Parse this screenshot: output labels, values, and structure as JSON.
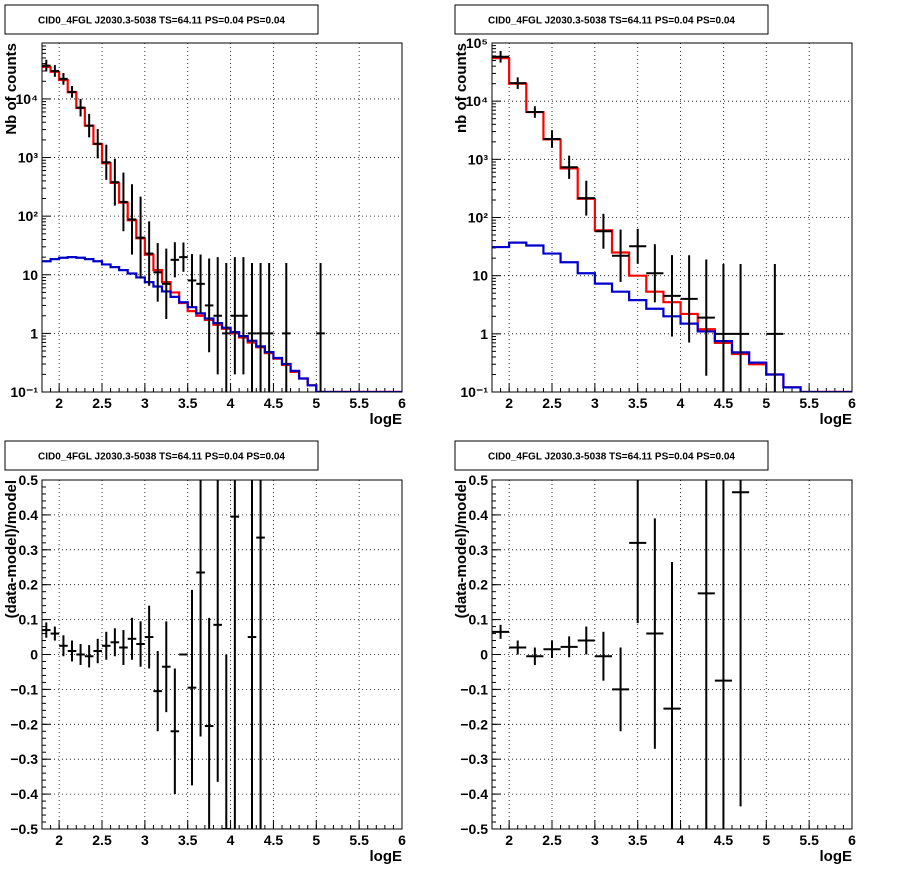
{
  "colors": {
    "data": "#000000",
    "total_model": "#ff0000",
    "source_model": "#0000cc",
    "grid": "#000000",
    "background": "#ffffff"
  },
  "chart_data": [
    {
      "type": "step_histogram_with_errorbars",
      "title": "CID0_4FGL J2030.3-5038 TS=64.11 PS=0.04 PS=0.04",
      "xlabel": "logE",
      "ylabel": "Nb of counts",
      "xlim": [
        1.8,
        6
      ],
      "ylim": [
        0.1,
        90000
      ],
      "yscale": "log",
      "grid": true,
      "x_ticks": [
        "2",
        "2.5",
        "3",
        "3.5",
        "4",
        "4.5",
        "5",
        "5.5",
        "6"
      ],
      "y_ticks": [
        "10⁻¹",
        "1",
        "10",
        "10²",
        "10³",
        "10⁴"
      ],
      "bin_edges": [
        1.8,
        1.9,
        2.0,
        2.1,
        2.2,
        2.3,
        2.4,
        2.5,
        2.6,
        2.7,
        2.8,
        2.9,
        3.0,
        3.1,
        3.2,
        3.3,
        3.4,
        3.5,
        3.6,
        3.7,
        3.8,
        3.9,
        4.0,
        4.1,
        4.2,
        4.3,
        4.4,
        4.5,
        4.6,
        4.7,
        4.8,
        4.9,
        5.0,
        5.1,
        5.2,
        5.3,
        5.4,
        5.5,
        5.6,
        5.7,
        5.8,
        5.9,
        6.0
      ],
      "series": [
        {
          "role": "total_model",
          "values": [
            35000,
            29000,
            21000,
            13000,
            7000,
            3500,
            1700,
            800,
            370,
            170,
            85,
            42,
            22,
            12,
            7.5,
            5,
            3.3,
            2.4,
            2,
            1.7,
            1.4,
            1.2,
            1,
            0.85,
            0.7,
            0.58,
            0.46,
            0.37,
            0.29,
            0.22,
            0.17,
            0.13,
            0.1,
            0.1,
            0.1,
            0.1,
            0.1,
            0.1,
            0.1,
            0.1,
            0.1,
            0.1
          ]
        },
        {
          "role": "source_model",
          "values": [
            17,
            18.5,
            19.5,
            20,
            19.5,
            18.5,
            17,
            15,
            13.5,
            12,
            10.5,
            9,
            7.5,
            6.3,
            5.2,
            4.2,
            3.4,
            2.8,
            2.2,
            1.8,
            1.5,
            1.25,
            1.05,
            0.9,
            0.75,
            0.6,
            0.48,
            0.38,
            0.3,
            0.23,
            0.17,
            0.13,
            0.1,
            0.1,
            0.1,
            0.1,
            0.1,
            0.1,
            0.1,
            0.1,
            0.1,
            0.1
          ]
        },
        {
          "role": "data",
          "points": [
            [
              1.85,
              37000,
              0.1,
              0.1
            ],
            [
              1.95,
              30000,
              0.1,
              0.1
            ],
            [
              2.05,
              22000,
              0.1,
              0.1
            ],
            [
              2.15,
              13200,
              0.1,
              0.1
            ],
            [
              2.25,
              7100,
              0.15,
              0.15
            ],
            [
              2.35,
              3500,
              0.2,
              0.2
            ],
            [
              2.45,
              1720,
              0.25,
              0.25
            ],
            [
              2.55,
              830,
              0.3,
              0.3
            ],
            [
              2.65,
              380,
              0.4,
              0.4
            ],
            [
              2.75,
              175,
              0.5,
              0.5
            ],
            [
              2.85,
              88,
              0.6,
              0.6
            ],
            [
              2.95,
              43,
              0.7,
              0.7
            ],
            [
              3.05,
              23,
              0.55,
              0.55
            ],
            [
              3.15,
              11,
              0.5,
              0.5
            ],
            [
              3.25,
              7,
              0.6,
              0.6
            ],
            [
              3.35,
              18,
              0.3,
              0.3
            ],
            [
              3.45,
              20,
              0.25,
              0.25
            ],
            [
              3.55,
              8,
              0.45,
              0.45
            ],
            [
              3.65,
              7,
              0.5,
              0.5
            ],
            [
              3.75,
              3,
              0.8,
              0.8
            ],
            [
              3.85,
              2,
              1.0,
              1.0
            ],
            [
              3.95,
              1,
              1.5,
              1.2
            ],
            [
              4.05,
              2,
              1.0,
              1.0
            ],
            [
              4.15,
              2,
              1.0,
              1.0
            ],
            [
              4.25,
              1,
              1.2,
              1.2
            ],
            [
              4.35,
              1,
              1.2,
              1.2
            ],
            [
              4.45,
              1,
              1.2,
              1.2
            ],
            [
              4.65,
              1,
              1.2,
              1.2
            ],
            [
              5.05,
              1,
              1.2,
              1.2
            ]
          ]
        }
      ]
    },
    {
      "type": "step_histogram_with_errorbars",
      "title": "CID0_4FGL J2030.3-5038 TS=64.11 PS=0.04 PS=0.04",
      "xlabel": "logE",
      "ylabel": "nb of counts",
      "xlim": [
        1.8,
        6
      ],
      "ylim": [
        0.1,
        100000
      ],
      "yscale": "log",
      "grid": true,
      "x_ticks": [
        "2",
        "2.5",
        "3",
        "3.5",
        "4",
        "4.5",
        "5",
        "5.5",
        "6"
      ],
      "y_ticks": [
        "10⁻¹",
        "1",
        "10",
        "10²",
        "10³",
        "10⁴",
        "10⁵"
      ],
      "bin_edges": [
        1.8,
        2.0,
        2.2,
        2.4,
        2.6,
        2.8,
        3.0,
        3.2,
        3.4,
        3.6,
        3.8,
        4.0,
        4.2,
        4.4,
        4.6,
        4.8,
        5.0,
        5.2,
        5.4,
        5.6,
        5.8,
        6.0
      ],
      "series": [
        {
          "role": "total_model",
          "values": [
            55000,
            20000,
            6500,
            2200,
            700,
            210,
            60,
            25,
            10,
            5.3,
            3.5,
            2.2,
            1.2,
            0.7,
            0.45,
            0.3,
            0.2,
            0.12,
            0.1,
            0.1,
            0.1
          ]
        },
        {
          "role": "source_model",
          "values": [
            31,
            37,
            33,
            24,
            17,
            11,
            7.3,
            5.3,
            3.8,
            2.7,
            2,
            1.5,
            1.1,
            0.75,
            0.48,
            0.32,
            0.2,
            0.12,
            0.1,
            0.1,
            0.1
          ]
        },
        {
          "role": "data",
          "points": [
            [
              1.9,
              58000,
              0.1,
              0.1
            ],
            [
              2.1,
              20400,
              0.1,
              0.1
            ],
            [
              2.3,
              6500,
              0.1,
              0.1
            ],
            [
              2.5,
              2240,
              0.15,
              0.15
            ],
            [
              2.7,
              730,
              0.2,
              0.2
            ],
            [
              2.9,
              215,
              0.3,
              0.3
            ],
            [
              3.1,
              58,
              0.3,
              0.3
            ],
            [
              3.3,
              22,
              0.45,
              0.45
            ],
            [
              3.5,
              32,
              0.3,
              0.3
            ],
            [
              3.7,
              11,
              0.5,
              0.5
            ],
            [
              3.9,
              4.5,
              0.7,
              0.7
            ],
            [
              4.1,
              4,
              0.75,
              0.75
            ],
            [
              4.3,
              1.9,
              1.0,
              1.0
            ],
            [
              4.5,
              1,
              1.2,
              1.2
            ],
            [
              4.7,
              1,
              1.2,
              1.2
            ],
            [
              5.1,
              1,
              1.2,
              1.2
            ]
          ]
        }
      ]
    },
    {
      "type": "scatter_with_errorbars",
      "title": "CID0_4FGL J2030.3-5038 TS=64.11 PS=0.04 PS=0.04",
      "xlabel": "logE",
      "ylabel": "(data-model)/model",
      "xlim": [
        1.8,
        6
      ],
      "ylim": [
        -0.5,
        0.5
      ],
      "grid": true,
      "x_ticks": [
        "2",
        "2.5",
        "3",
        "3.5",
        "4",
        "4.5",
        "5",
        "5.5",
        "6"
      ],
      "y_ticks": [
        "−0.5",
        "−0.4",
        "−0.3",
        "−0.2",
        "−0.1",
        "0",
        "0.1",
        "0.2",
        "0.3",
        "0.4",
        "0.5"
      ],
      "xerr": 0.05,
      "points": [
        [
          1.85,
          0.07,
          0.022
        ],
        [
          1.95,
          0.06,
          0.02
        ],
        [
          2.05,
          0.025,
          0.03
        ],
        [
          2.15,
          0.01,
          0.03
        ],
        [
          2.25,
          0.0,
          0.03
        ],
        [
          2.35,
          -0.005,
          0.032
        ],
        [
          2.45,
          0.01,
          0.035
        ],
        [
          2.55,
          0.025,
          0.04
        ],
        [
          2.65,
          0.035,
          0.04
        ],
        [
          2.75,
          0.02,
          0.05
        ],
        [
          2.85,
          0.045,
          0.06
        ],
        [
          2.95,
          0.03,
          0.065
        ],
        [
          3.05,
          0.05,
          0.09
        ],
        [
          3.15,
          -0.105,
          0.115
        ],
        [
          3.25,
          -0.035,
          0.13
        ],
        [
          3.35,
          -0.22,
          0.18
        ],
        [
          3.45,
          0.0,
          0.0
        ],
        [
          3.55,
          -0.095,
          0.28
        ],
        [
          3.65,
          0.235,
          0.47
        ],
        [
          3.75,
          -0.205,
          0.31
        ],
        [
          3.85,
          0.085,
          0.45
        ],
        [
          3.95,
          -0.5,
          0.5
        ],
        [
          4.05,
          0.395,
          0.9
        ],
        [
          4.25,
          0.05,
          0.6
        ],
        [
          4.35,
          0.335,
          0.9
        ]
      ]
    },
    {
      "type": "scatter_with_errorbars",
      "title": "CID0_4FGL J2030.3-5038 TS=64.11 PS=0.04 PS=0.04",
      "xlabel": "logE",
      "ylabel": "(data-model)/model",
      "xlim": [
        1.8,
        6
      ],
      "ylim": [
        -0.5,
        0.5
      ],
      "grid": true,
      "x_ticks": [
        "2",
        "2.5",
        "3",
        "3.5",
        "4",
        "4.5",
        "5",
        "5.5",
        "6"
      ],
      "y_ticks": [
        "−0.5",
        "−0.4",
        "−0.3",
        "−0.2",
        "−0.1",
        "0",
        "0.1",
        "0.2",
        "0.3",
        "0.4",
        "0.5"
      ],
      "xerr": 0.1,
      "points": [
        [
          1.9,
          0.065,
          0.02
        ],
        [
          2.1,
          0.02,
          0.02
        ],
        [
          2.3,
          -0.005,
          0.025
        ],
        [
          2.5,
          0.015,
          0.025
        ],
        [
          2.7,
          0.022,
          0.03
        ],
        [
          2.9,
          0.04,
          0.04
        ],
        [
          3.1,
          -0.005,
          0.07
        ],
        [
          3.3,
          -0.1,
          0.12
        ],
        [
          3.5,
          0.32,
          0.23
        ],
        [
          3.7,
          0.06,
          0.33
        ],
        [
          3.9,
          -0.155,
          0.42
        ],
        [
          4.3,
          0.175,
          0.9
        ],
        [
          4.5,
          -0.075,
          0.9
        ],
        [
          4.7,
          0.465,
          0.9
        ]
      ]
    }
  ]
}
